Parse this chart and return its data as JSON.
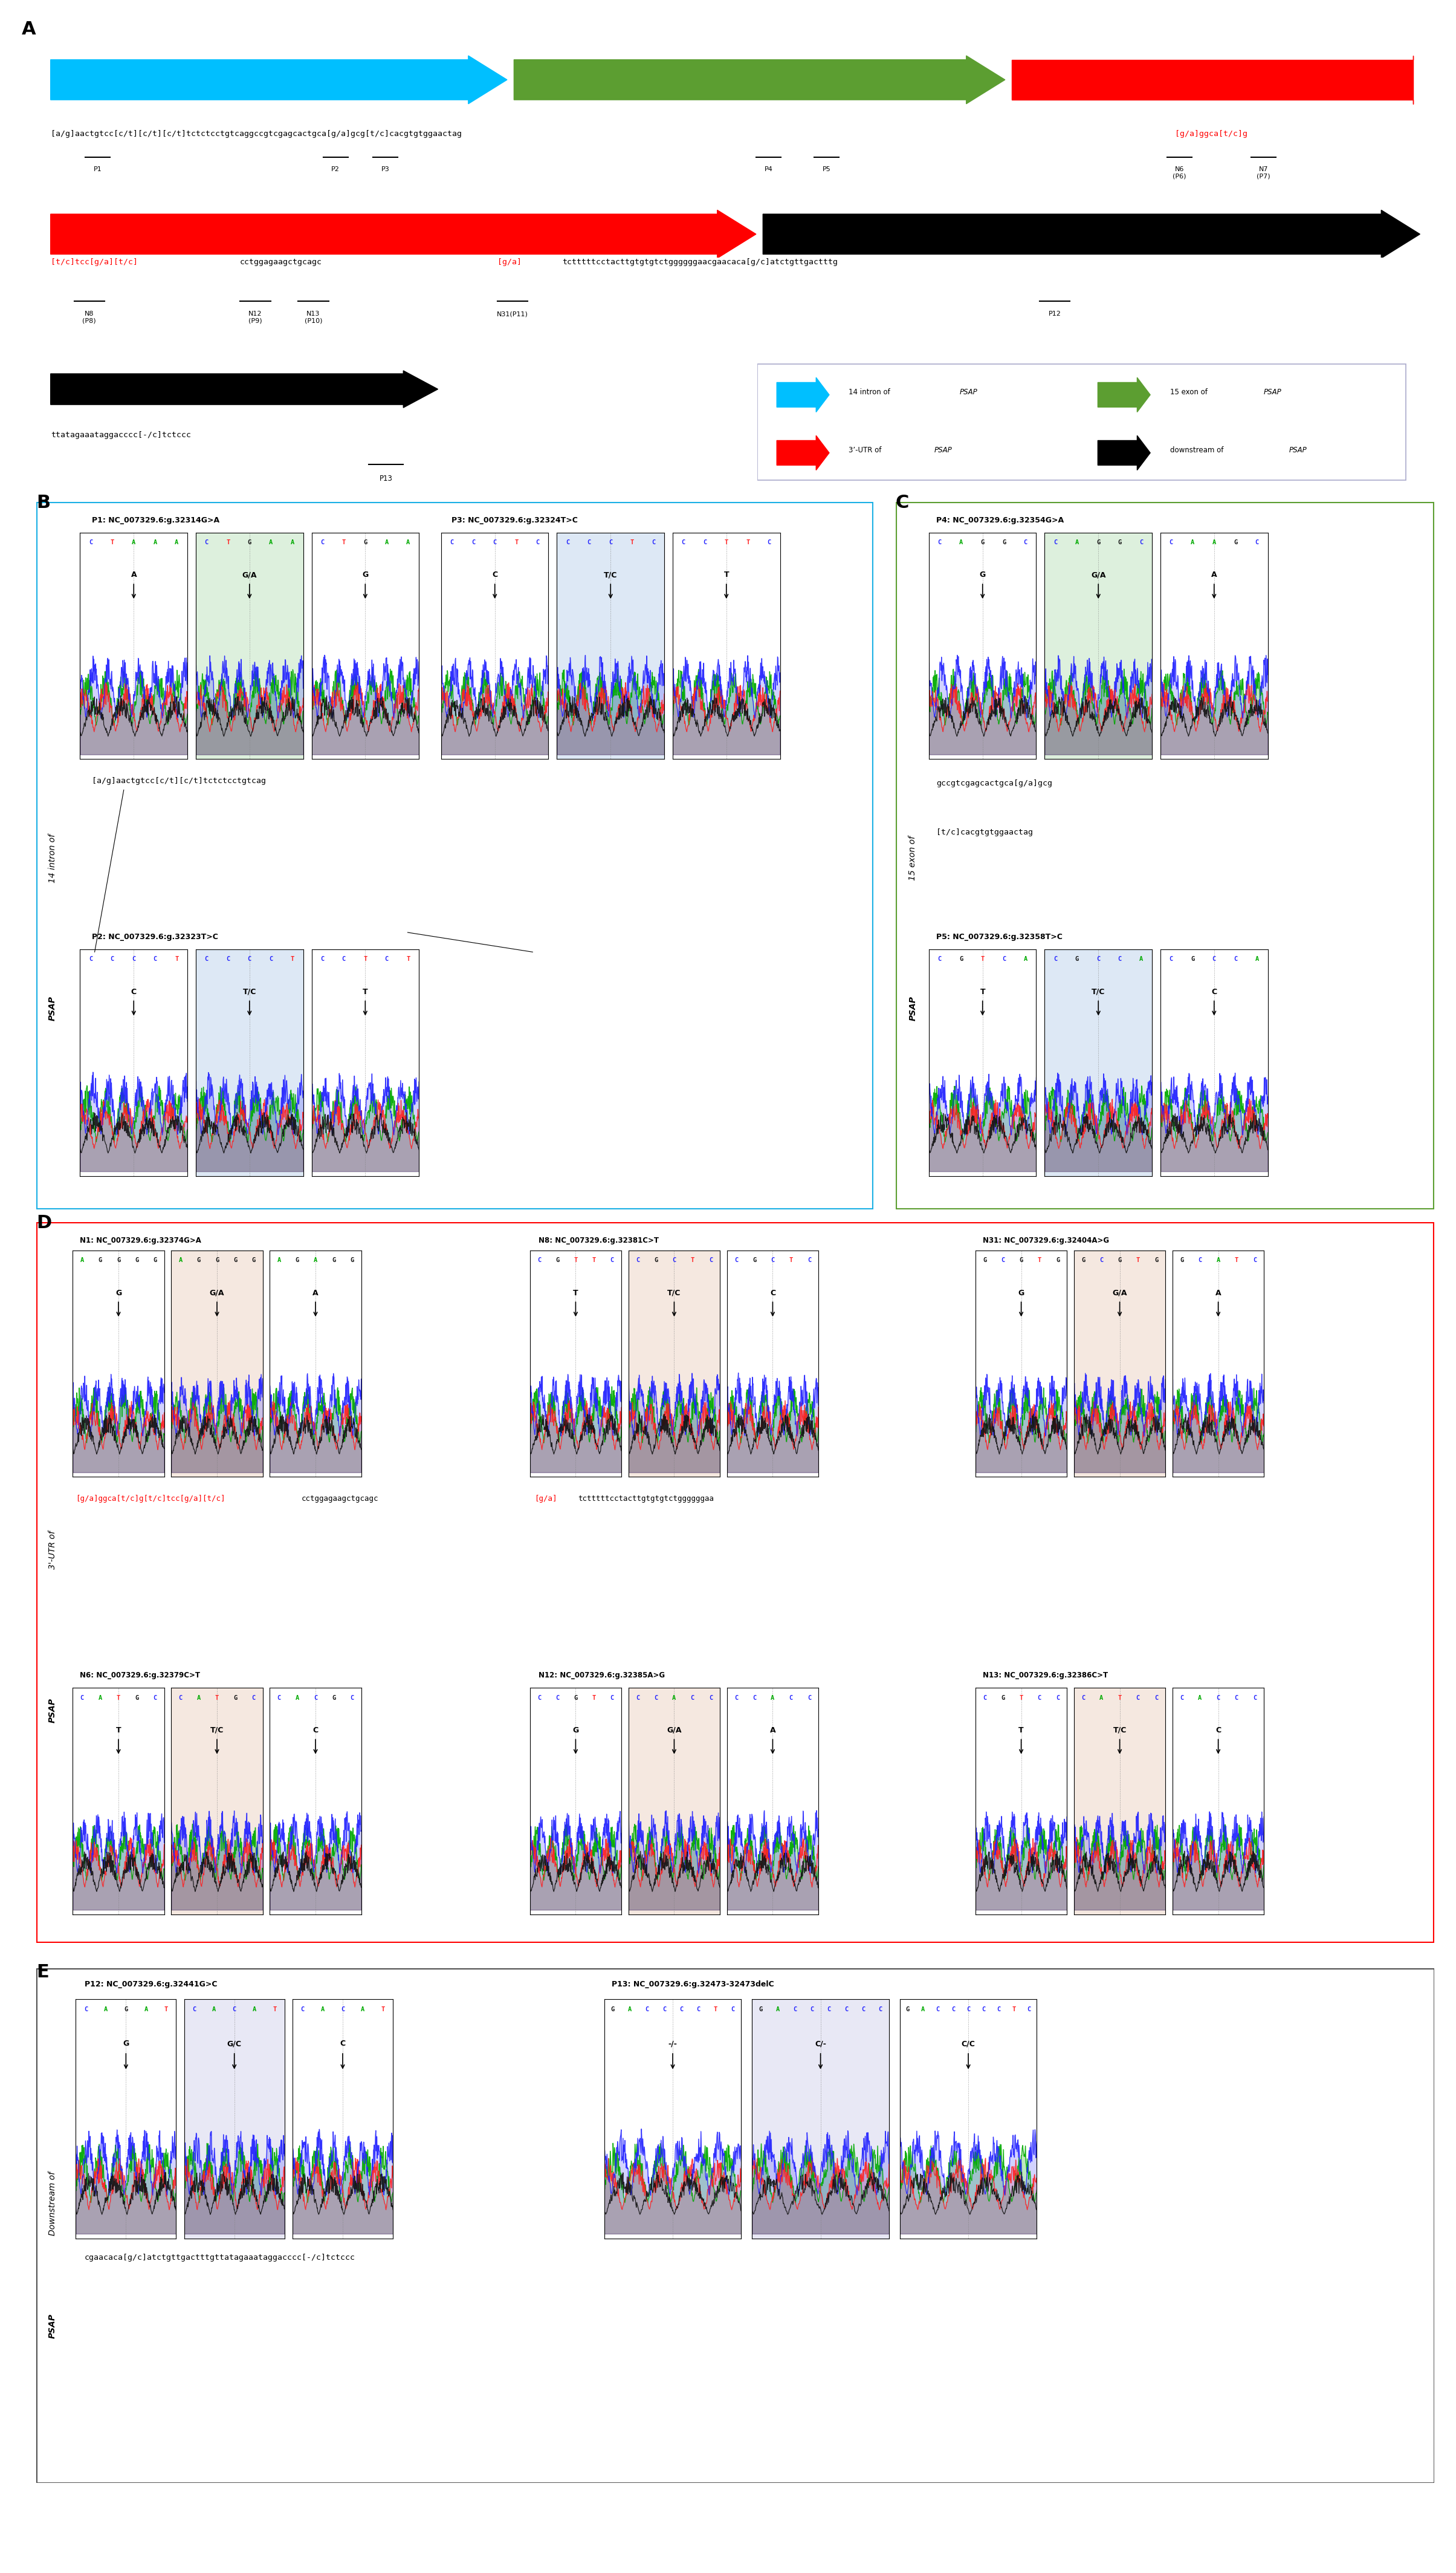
{
  "fig_width": 24.09,
  "fig_height": 42.55,
  "panel_A": {
    "arrow1_color": "#00BFFF",
    "arrow2_color": "#5C9E31",
    "arrow3_color": "#FF0000",
    "arrow4_color": "#000000",
    "legend_items": [
      {
        "color": "#00BFFF",
        "text": "14 intron of ",
        "italic": "PSAP"
      },
      {
        "color": "#5C9E31",
        "text": "15 exon of ",
        "italic": "PSAP"
      },
      {
        "color": "#FF0000",
        "text": "3’-UTR of ",
        "italic": "PSAP"
      },
      {
        "color": "#000000",
        "text": "downstream of ",
        "italic": "PSAP"
      }
    ]
  },
  "panel_B": {
    "border_color": "#1BB0E5",
    "title_P1": "P1: NC_007329.6:g.32314G>A",
    "title_P3": "P3: NC_007329.6:g.32324T>C",
    "title_P2": "P2: NC_007329.6:g.32323T>C",
    "seq_text_B": "[a/g]aactgtcc[c/t][c/t]tctctcctgtcag",
    "panel_label": "14 intron of PSAP",
    "chromas_P1": [
      {
        "bases": "CTAAA",
        "genotype": "A",
        "bg": "white"
      },
      {
        "bases": "CTGAA",
        "genotype": "G/A",
        "bg": "#DDF0DD"
      },
      {
        "bases": "CTGAA",
        "genotype": "G",
        "bg": "white"
      }
    ],
    "chromas_P3": [
      {
        "bases": "CCCTC",
        "genotype": "C",
        "bg": "white"
      },
      {
        "bases": "CCCTC",
        "genotype": "T/C",
        "bg": "#DDE8F5"
      },
      {
        "bases": "CCTTC",
        "genotype": "T",
        "bg": "white"
      }
    ],
    "chromas_P2": [
      {
        "bases": "CCCCT",
        "genotype": "C",
        "bg": "white"
      },
      {
        "bases": "CCCCT",
        "genotype": "T/C",
        "bg": "#DDE8F5"
      },
      {
        "bases": "CCTCT",
        "genotype": "T",
        "bg": "white"
      }
    ]
  },
  "panel_C": {
    "border_color": "#5C9E31",
    "title_P4": "P4: NC_007329.6:g.32354G>A",
    "title_P5": "P5: NC_007329.6:g.32358T>C",
    "panel_label": "15 exon of PSAP",
    "chromas_P4": [
      {
        "bases": "CAGGC",
        "genotype": "G",
        "bg": "white"
      },
      {
        "bases": "CAGGC",
        "genotype": "G/A",
        "bg": "#DDF0DD"
      },
      {
        "bases": "CAAGC",
        "genotype": "A",
        "bg": "white"
      }
    ],
    "chromas_P5": [
      {
        "bases": "CGTCA",
        "genotype": "T",
        "bg": "white"
      },
      {
        "bases": "CGCCA",
        "genotype": "T/C",
        "bg": "#DDE8F5"
      },
      {
        "bases": "CGCCA",
        "genotype": "C",
        "bg": "white"
      }
    ]
  },
  "panel_D": {
    "border_color": "#FF0000",
    "title_N1": "N1: NC_007329.6:g.32374G>A",
    "title_N8": "N8: NC_007329.6:g.32381C>T",
    "title_N31": "N31: NC_007329.6:g.32404A>G",
    "title_N6": "N6: NC_007329.6:g.32379C>T",
    "title_N12": "N12: NC_007329.6:g.32385A>G",
    "title_N13": "N13: NC_007329.6:g.32386C>T",
    "panel_label": "3'-UTR of PSAP",
    "chromas_N1": [
      {
        "bases": "AGGGG",
        "genotype": "G",
        "bg": "white"
      },
      {
        "bases": "AGGGG",
        "genotype": "G/A",
        "bg": "#F5E8E0"
      },
      {
        "bases": "AGAGG",
        "genotype": "A",
        "bg": "white"
      }
    ],
    "chromas_N8": [
      {
        "bases": "CGTTC",
        "genotype": "T",
        "bg": "white"
      },
      {
        "bases": "CGCTC",
        "genotype": "T/C",
        "bg": "#F5E8E0"
      },
      {
        "bases": "CGCTC",
        "genotype": "C",
        "bg": "white"
      }
    ],
    "chromas_N31": [
      {
        "bases": "GCGTG",
        "genotype": "G",
        "bg": "white"
      },
      {
        "bases": "GCGTG",
        "genotype": "G/A",
        "bg": "#F5E8E0"
      },
      {
        "bases": "GCATC",
        "genotype": "A",
        "bg": "white"
      }
    ],
    "chromas_N6": [
      {
        "bases": "CATGC",
        "genotype": "T",
        "bg": "white"
      },
      {
        "bases": "CATGC",
        "genotype": "T/C",
        "bg": "#F5E8E0"
      },
      {
        "bases": "CACGC",
        "genotype": "C",
        "bg": "white"
      }
    ],
    "chromas_N12": [
      {
        "bases": "CCGTC",
        "genotype": "G",
        "bg": "white"
      },
      {
        "bases": "CCACC",
        "genotype": "G/A",
        "bg": "#F5E8E0"
      },
      {
        "bases": "CCACC",
        "genotype": "A",
        "bg": "white"
      }
    ],
    "chromas_N13": [
      {
        "bases": "CGTCC",
        "genotype": "T",
        "bg": "white"
      },
      {
        "bases": "CATCC",
        "genotype": "T/C",
        "bg": "#F5E8E0"
      },
      {
        "bases": "CACCC",
        "genotype": "C",
        "bg": "white"
      }
    ]
  },
  "panel_E": {
    "border_color": "#444444",
    "title_P12": "P12: NC_007329.6:g.32441G>C",
    "title_P13": "P13: NC_007329.6:g.32473-32473delC",
    "panel_label": "Downstream of PSAP",
    "chromas_P12": [
      {
        "bases": "CAGAT",
        "genotype": "G",
        "bg": "white"
      },
      {
        "bases": "CACAT",
        "genotype": "G/C",
        "bg": "#E8E8F5"
      },
      {
        "bases": "CACAT",
        "genotype": "C",
        "bg": "white"
      }
    ],
    "chromas_P13": [
      {
        "bases": "GACCCCTC",
        "genotype": "-/-",
        "bg": "white"
      },
      {
        "bases": "GACCCCCC",
        "genotype": "C/-",
        "bg": "#E8E8F5"
      },
      {
        "bases": "GACCCCCTC",
        "genotype": "C/C",
        "bg": "white"
      }
    ]
  }
}
